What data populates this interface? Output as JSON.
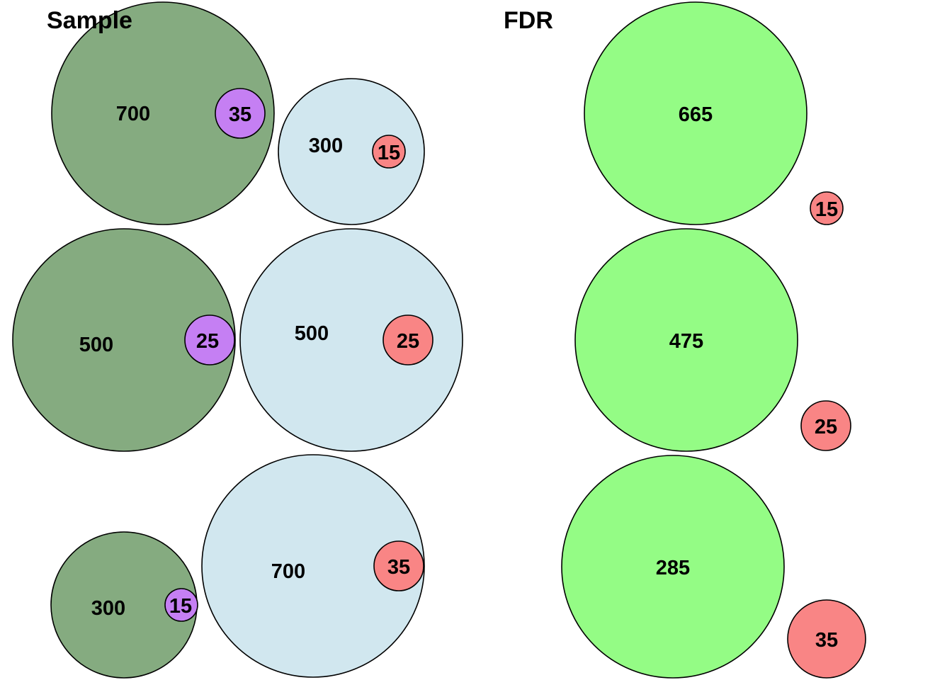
{
  "panels": {
    "sample": {
      "title": "Sample",
      "groups": [
        {
          "big": {
            "value": "700",
            "color": "#85ab80"
          },
          "small": {
            "value": "35",
            "color": "#c57ff3"
          }
        },
        {
          "big": {
            "value": "300",
            "color": "#d1e7ef"
          },
          "small": {
            "value": "15",
            "color": "#f98585"
          }
        },
        {
          "big": {
            "value": "500",
            "color": "#85ab80"
          },
          "small": {
            "value": "25",
            "color": "#c57ff3"
          }
        },
        {
          "big": {
            "value": "500",
            "color": "#d1e7ef"
          },
          "small": {
            "value": "25",
            "color": "#f98585"
          }
        },
        {
          "big": {
            "value": "300",
            "color": "#85ab80"
          },
          "small": {
            "value": "15",
            "color": "#c57ff3"
          }
        },
        {
          "big": {
            "value": "700",
            "color": "#d1e7ef"
          },
          "small": {
            "value": "35",
            "color": "#f98585"
          }
        }
      ]
    },
    "fdr": {
      "title": "FDR",
      "groups": [
        {
          "big": {
            "value": "665",
            "color": "#94fc85"
          },
          "small": {
            "value": "15",
            "color": "#f98585"
          }
        },
        {
          "big": {
            "value": "475",
            "color": "#94fc85"
          },
          "small": {
            "value": "25",
            "color": "#f98585"
          }
        },
        {
          "big": {
            "value": "285",
            "color": "#94fc85"
          },
          "small": {
            "value": "35",
            "color": "#f98585"
          }
        }
      ]
    }
  }
}
